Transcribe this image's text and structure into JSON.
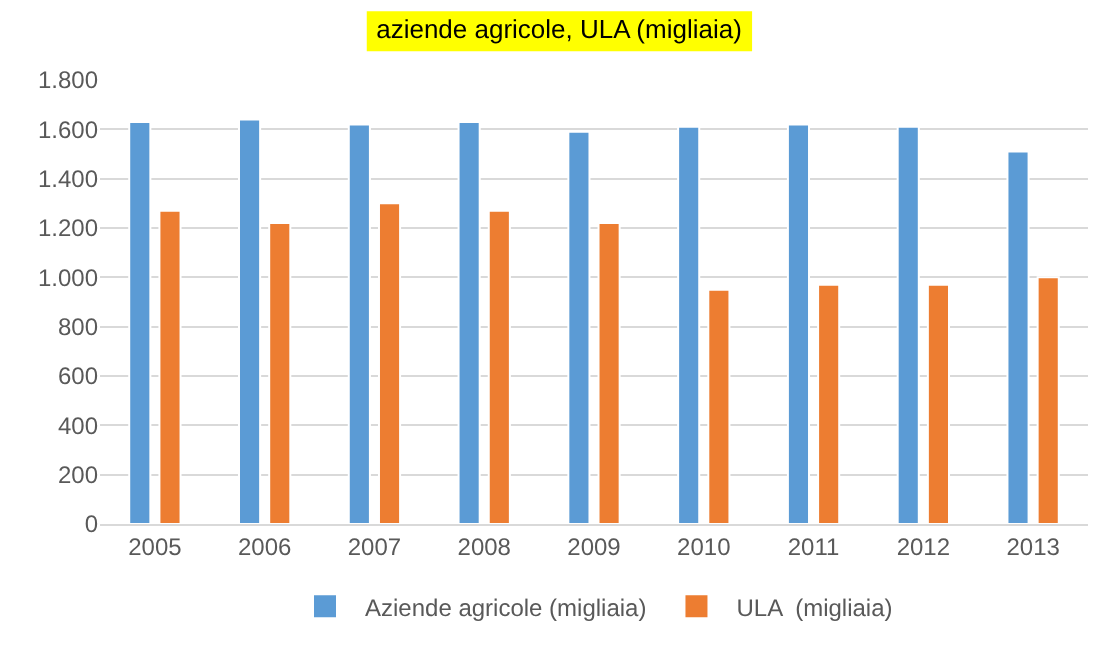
{
  "chart_data": {
    "type": "bar",
    "title": "aziende agricole, ULA (migliaia)",
    "categories": [
      "2005",
      "2006",
      "2007",
      "2008",
      "2009",
      "2010",
      "2011",
      "2012",
      "2013"
    ],
    "series": [
      {
        "name": "Aziende agricole (migliaia)",
        "color": "#5b9bd5",
        "values": [
          1630,
          1640,
          1620,
          1630,
          1590,
          1610,
          1620,
          1610,
          1510
        ]
      },
      {
        "name": "ULA  (migliaia)",
        "color": "#ed7d31",
        "values": [
          1270,
          1220,
          1300,
          1270,
          1220,
          950,
          970,
          970,
          1000
        ]
      }
    ],
    "ylim": [
      0,
      1800
    ],
    "yticks": [
      0,
      200,
      400,
      600,
      800,
      {
        "value": 1000,
        "label": "1.000"
      },
      {
        "value": 1200,
        "label": "1.200"
      },
      {
        "value": 1400,
        "label": "1.400"
      },
      {
        "value": 1600,
        "label": "1.600"
      },
      {
        "value": 1800,
        "label": "1.800"
      }
    ],
    "grid": "y",
    "legend": "bottom"
  }
}
